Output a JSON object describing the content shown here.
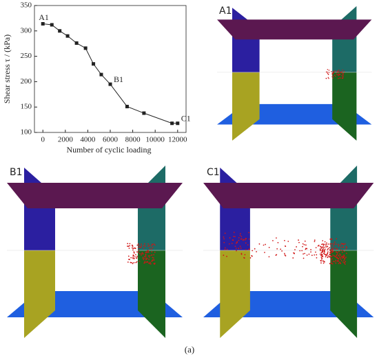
{
  "chart_data": {
    "type": "line",
    "xlabel": "Number of cyclic loading",
    "ylabel": "Shear stress τ / (kPa)",
    "x": [
      0,
      800,
      1500,
      2200,
      3000,
      3800,
      4500,
      5200,
      6000,
      7500,
      9000,
      11500,
      12000
    ],
    "series": [
      {
        "color": "#222222",
        "values": [
          314,
          312,
          300,
          290,
          276,
          266,
          235,
          214,
          195,
          151,
          138,
          118,
          118
        ],
        "point_labels": [
          "A1",
          null,
          null,
          null,
          null,
          null,
          null,
          null,
          "B1",
          null,
          null,
          null,
          "C1"
        ]
      }
    ],
    "xlim": [
      -750,
      12750
    ],
    "ylim": [
      100,
      350
    ],
    "xticks": [
      0,
      2000,
      4000,
      6000,
      8000,
      10000,
      12000
    ],
    "yticks": [
      100,
      150,
      200,
      250,
      300,
      350
    ]
  },
  "panels": [
    {
      "label": "A1"
    },
    {
      "label": "B1"
    },
    {
      "label": "C1"
    }
  ],
  "caption": "(a)"
}
